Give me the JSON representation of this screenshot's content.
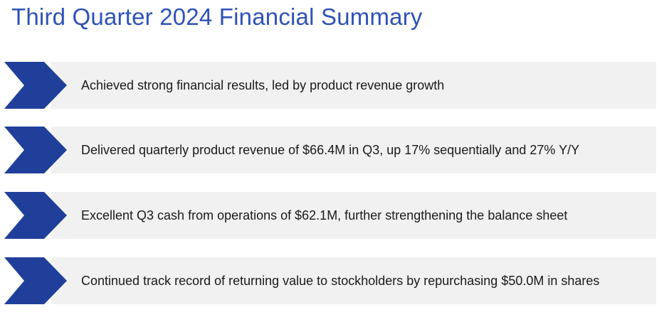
{
  "title": "Third Quarter 2024 Financial Summary",
  "colors": {
    "title": "#2f52b8",
    "chevron": "#1f3f9a",
    "bar_background": "#f1f1f1",
    "text": "#1a1a1a"
  },
  "bullets": [
    {
      "icon": "chevron-right-icon",
      "text": "Achieved strong financial results, led by product revenue growth"
    },
    {
      "icon": "chevron-right-icon",
      "text": "Delivered quarterly product revenue of $66.4M in Q3, up 17% sequentially and 27% Y/Y"
    },
    {
      "icon": "chevron-right-icon",
      "text": "Excellent Q3 cash from operations of $62.1M, further strengthening the balance sheet"
    },
    {
      "icon": "chevron-right-icon",
      "text": "Continued track record of returning value to stockholders by repurchasing $50.0M in shares"
    }
  ]
}
